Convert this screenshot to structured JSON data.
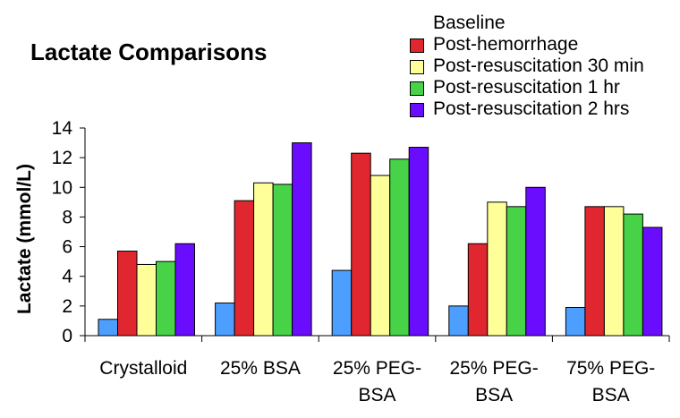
{
  "chart_data": {
    "type": "bar",
    "title": "Lactate Comparisons",
    "ylabel": "Lactate (mmol/L)",
    "xlabel": "",
    "ylim": [
      0,
      14
    ],
    "yticks": [
      0,
      2,
      4,
      6,
      8,
      10,
      12,
      14
    ],
    "grid": false,
    "legend_position": "top-right",
    "categories": [
      [
        "Crystalloid"
      ],
      [
        "25% BSA"
      ],
      [
        "25% PEG-",
        "BSA"
      ],
      [
        "25% PEG-",
        "BSA"
      ],
      [
        "75% PEG-",
        "BSA"
      ]
    ],
    "series": [
      {
        "name": "Baseline",
        "color": "#4d9fff",
        "values": [
          1.1,
          2.2,
          4.4,
          2.0,
          1.9
        ]
      },
      {
        "name": "Post-hemorrhage",
        "color": "#e0262e",
        "values": [
          5.7,
          9.1,
          12.3,
          6.2,
          8.7
        ]
      },
      {
        "name": "Post-resuscitation 30 min",
        "color": "#ffff99",
        "values": [
          4.8,
          10.3,
          10.8,
          9.0,
          8.7
        ]
      },
      {
        "name": "Post-resuscitation 1 hr",
        "color": "#47d247",
        "values": [
          5.0,
          10.2,
          11.9,
          8.7,
          8.2
        ]
      },
      {
        "name": "Post-resuscitation 2 hrs",
        "color": "#6a0dff",
        "values": [
          6.2,
          13.0,
          12.7,
          10.0,
          7.3
        ]
      }
    ]
  }
}
